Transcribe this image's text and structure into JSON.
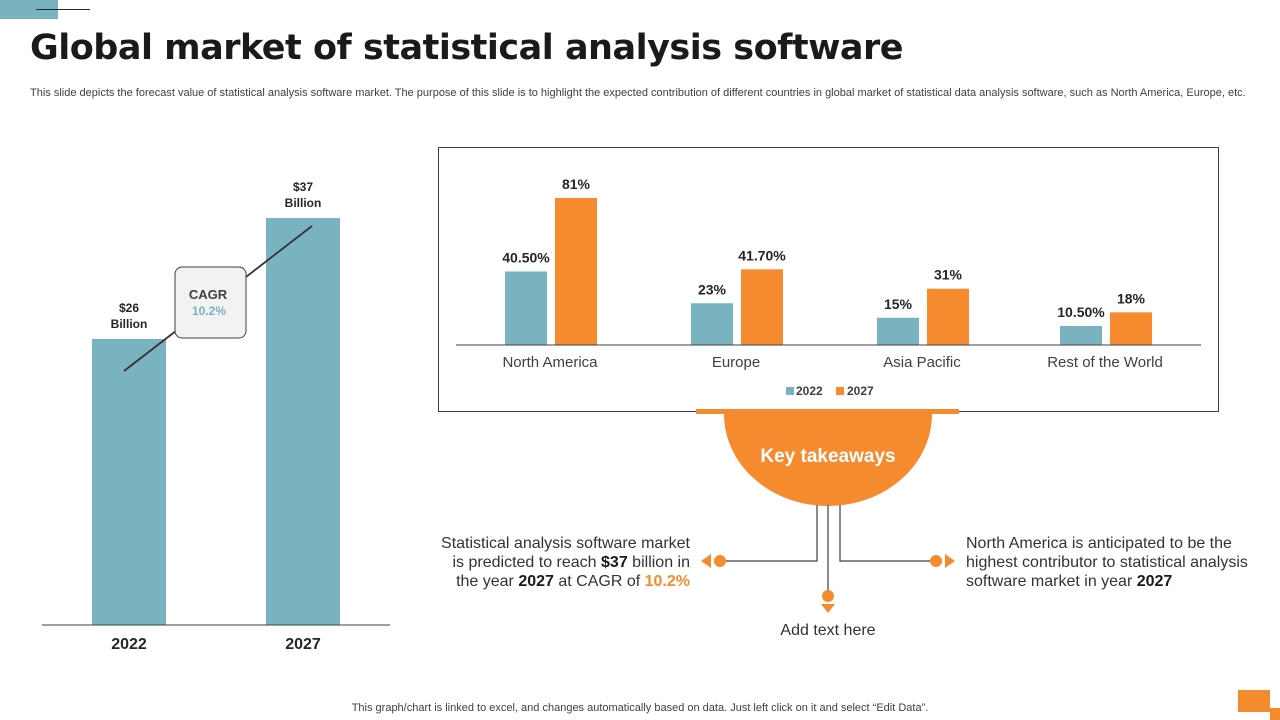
{
  "slide": {
    "title": "Global market of statistical analysis software",
    "subtitle": "This slide depicts the forecast value of statistical analysis software market. The purpose of this slide is to highlight the expected contribution of different countries in global market of statistical data analysis software, such as North America, Europe, etc.",
    "footnote": "This graph/chart is linked to excel,  and changes automatically based on data. Just left click on it and select “Edit Data”."
  },
  "colors": {
    "teal": "#7ab3c0",
    "orange": "#f58a2f",
    "dark": "#1a1a1a"
  },
  "chart_data": [
    {
      "type": "bar",
      "title": "",
      "categories": [
        "2022",
        "2027"
      ],
      "values": [
        26,
        37
      ],
      "unit": "$ Billion",
      "data_labels": [
        [
          "$26",
          "Billion"
        ],
        [
          "$37",
          "Billion"
        ]
      ],
      "cagr_label": "CAGR",
      "cagr_value": "10.2%",
      "ylim": [
        0,
        40
      ],
      "xlabel": "",
      "ylabel": ""
    },
    {
      "type": "bar",
      "title": "",
      "categories": [
        "North America",
        "Europe",
        "Asia Pacific",
        "Rest of the World"
      ],
      "series": [
        {
          "name": "2022",
          "values": [
            40.5,
            23,
            15,
            10.5
          ],
          "labels": [
            "40.50%",
            "23%",
            "15%",
            "10.50%"
          ]
        },
        {
          "name": "2027",
          "values": [
            81,
            41.7,
            31,
            18
          ],
          "labels": [
            "81%",
            "41.70%",
            "31%",
            "18%"
          ]
        }
      ],
      "ylim": [
        0,
        81
      ],
      "legend": "bottom",
      "xlabel": "",
      "ylabel": ""
    }
  ],
  "takeaways": {
    "title": "Key takeaways",
    "left": {
      "p1": "Statistical analysis software market is predicted to reach ",
      "b1": "$37",
      "p2": " billion in the year ",
      "b2": "2027",
      "p3": " at CAGR of ",
      "hl": "10.2%"
    },
    "right": {
      "p1": "North America is anticipated to be the highest contributor to statistical analysis software market in year ",
      "b1": "2027"
    },
    "bottom": "Add text here"
  }
}
